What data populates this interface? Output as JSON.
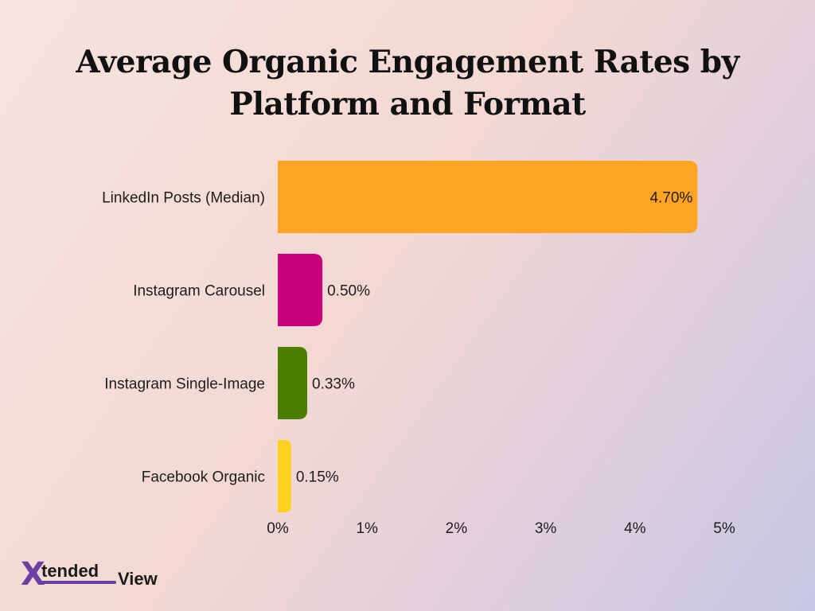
{
  "chart_data": {
    "type": "bar",
    "orientation": "horizontal",
    "title": "Average Organic Engagement Rates by Platform and Format",
    "categories": [
      "LinkedIn Posts (Median)",
      "Instagram Carousel",
      "Instagram Single-Image",
      "Facebook Organic"
    ],
    "values": [
      4.7,
      0.5,
      0.33,
      0.15
    ],
    "value_labels": [
      "4.70%",
      "0.50%",
      "0.33%",
      "0.15%"
    ],
    "colors": [
      "#FFA424",
      "#C8007C",
      "#4A7D00",
      "#FFD21F"
    ],
    "xlim": [
      0,
      5
    ],
    "xticks": [
      0,
      1,
      2,
      3,
      4,
      5
    ],
    "xtick_labels": [
      "0%",
      "1%",
      "2%",
      "3%",
      "4%",
      "5%"
    ],
    "grid": false,
    "legend": "none"
  },
  "logo": {
    "x": "X",
    "tended": "tended",
    "view": "View",
    "accent": "#6b3fa3"
  }
}
